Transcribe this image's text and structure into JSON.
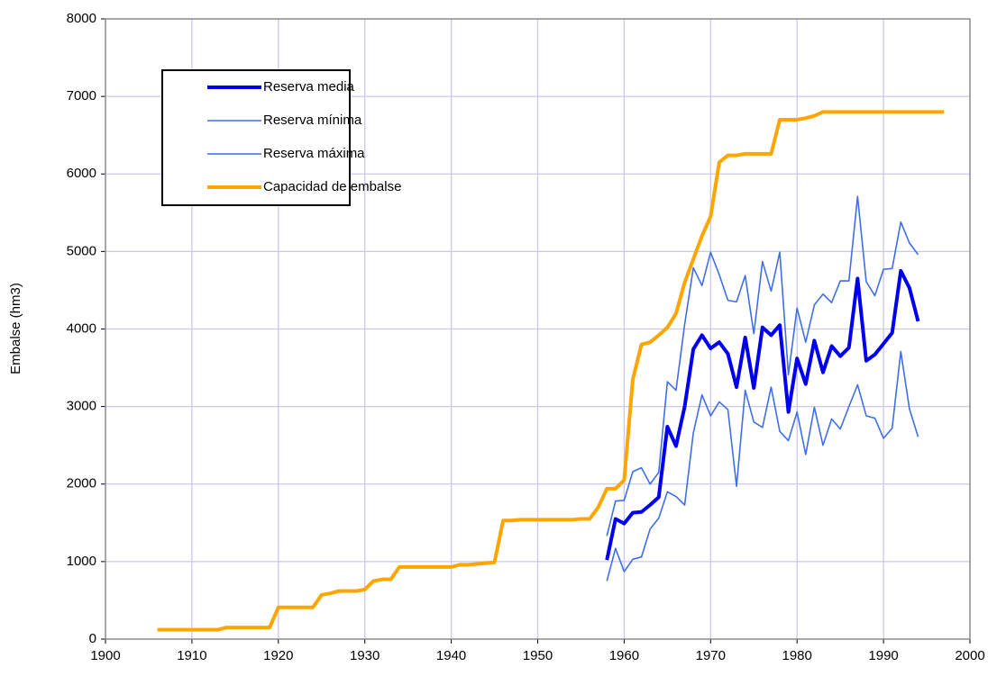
{
  "chart_data": {
    "type": "line",
    "y_label": "Embalse (hm3)",
    "xlim": [
      1900,
      2000
    ],
    "xticks": [
      1900,
      1910,
      1920,
      1930,
      1940,
      1950,
      1960,
      1970,
      1980,
      1990,
      2000
    ],
    "ylim": [
      0,
      8000
    ],
    "yticks": [
      0,
      1000,
      2000,
      3000,
      4000,
      5000,
      6000,
      7000,
      8000
    ],
    "grid": true,
    "legend": "upper left",
    "series": [
      {
        "name": "Reserva media",
        "color": "#0000ee",
        "width": 4,
        "x": [
          1958,
          1959,
          1960,
          1961,
          1962,
          1963,
          1964,
          1965,
          1966,
          1967,
          1968,
          1969,
          1970,
          1971,
          1972,
          1973,
          1974,
          1975,
          1976,
          1977,
          1978,
          1979,
          1980,
          1981,
          1982,
          1983,
          1984,
          1985,
          1986,
          1987,
          1988,
          1989,
          1990,
          1991,
          1992,
          1993,
          1994
        ],
        "values": [
          1020,
          1550,
          1490,
          1630,
          1640,
          1730,
          1830,
          2740,
          2490,
          3000,
          3740,
          3920,
          3750,
          3830,
          3680,
          3250,
          3890,
          3240,
          4020,
          3920,
          4050,
          2930,
          3620,
          3290,
          3850,
          3440,
          3780,
          3650,
          3760,
          4650,
          3590,
          3670,
          3810,
          3950,
          4750,
          4530,
          4100
        ]
      },
      {
        "name": "Reserva mínima",
        "color": "#3f6fe6",
        "width": 1.6,
        "x": [
          1958,
          1959,
          1960,
          1961,
          1962,
          1963,
          1964,
          1965,
          1966,
          1967,
          1968,
          1969,
          1970,
          1971,
          1972,
          1973,
          1974,
          1975,
          1976,
          1977,
          1978,
          1979,
          1980,
          1981,
          1982,
          1983,
          1984,
          1985,
          1986,
          1987,
          1988,
          1989,
          1990,
          1991,
          1992,
          1993,
          1994
        ],
        "values": [
          750,
          1170,
          870,
          1030,
          1060,
          1420,
          1560,
          1900,
          1840,
          1730,
          2660,
          3150,
          2880,
          3060,
          2960,
          1970,
          3210,
          2800,
          2730,
          3250,
          2680,
          2560,
          2930,
          2380,
          2990,
          2500,
          2840,
          2710,
          3000,
          3280,
          2880,
          2850,
          2590,
          2720,
          3710,
          2970,
          2610
        ]
      },
      {
        "name": "Reserva máxima",
        "color": "#3f6fe6",
        "width": 1.6,
        "x": [
          1958,
          1959,
          1960,
          1961,
          1962,
          1963,
          1964,
          1965,
          1966,
          1967,
          1968,
          1969,
          1970,
          1971,
          1972,
          1973,
          1974,
          1975,
          1976,
          1977,
          1978,
          1979,
          1980,
          1981,
          1982,
          1983,
          1984,
          1985,
          1986,
          1987,
          1988,
          1989,
          1990,
          1991,
          1992,
          1993,
          1994
        ],
        "values": [
          1330,
          1780,
          1790,
          2160,
          2210,
          2000,
          2150,
          3320,
          3210,
          4060,
          4790,
          4560,
          4990,
          4700,
          4370,
          4350,
          4690,
          3940,
          4870,
          4490,
          4990,
          3410,
          4270,
          3830,
          4310,
          4450,
          4340,
          4620,
          4620,
          5710,
          4610,
          4430,
          4770,
          4780,
          5380,
          5110,
          4960
        ]
      },
      {
        "name": "Capacidad de embalse",
        "color": "#ffa500",
        "width": 4,
        "x": [
          1906,
          1907,
          1908,
          1909,
          1910,
          1911,
          1912,
          1913,
          1914,
          1915,
          1916,
          1917,
          1918,
          1919,
          1920,
          1921,
          1922,
          1923,
          1924,
          1925,
          1926,
          1927,
          1928,
          1929,
          1930,
          1931,
          1932,
          1933,
          1934,
          1935,
          1936,
          1937,
          1938,
          1939,
          1940,
          1941,
          1942,
          1943,
          1944,
          1945,
          1946,
          1947,
          1948,
          1949,
          1950,
          1951,
          1952,
          1953,
          1954,
          1955,
          1956,
          1957,
          1958,
          1959,
          1960,
          1961,
          1962,
          1963,
          1964,
          1965,
          1966,
          1967,
          1968,
          1969,
          1970,
          1971,
          1972,
          1973,
          1974,
          1975,
          1976,
          1977,
          1978,
          1979,
          1980,
          1981,
          1982,
          1983,
          1984,
          1985,
          1986,
          1987,
          1988,
          1989,
          1990,
          1991,
          1992,
          1993,
          1994,
          1995,
          1996,
          1997
        ],
        "values": [
          120,
          120,
          120,
          120,
          120,
          120,
          120,
          120,
          150,
          150,
          150,
          150,
          150,
          150,
          410,
          410,
          410,
          410,
          410,
          570,
          590,
          620,
          620,
          620,
          640,
          750,
          770,
          770,
          930,
          930,
          930,
          930,
          930,
          930,
          930,
          960,
          960,
          970,
          980,
          990,
          1530,
          1530,
          1540,
          1540,
          1540,
          1540,
          1540,
          1540,
          1540,
          1550,
          1550,
          1700,
          1940,
          1940,
          2050,
          3350,
          3800,
          3830,
          3920,
          4020,
          4200,
          4600,
          4900,
          5200,
          5450,
          6150,
          6240,
          6240,
          6260,
          6260,
          6260,
          6260,
          6700,
          6700,
          6700,
          6720,
          6750,
          6800,
          6800,
          6800,
          6800,
          6800,
          6800,
          6800,
          6800,
          6800,
          6800,
          6800,
          6800,
          6800,
          6800,
          6800
        ]
      }
    ]
  }
}
